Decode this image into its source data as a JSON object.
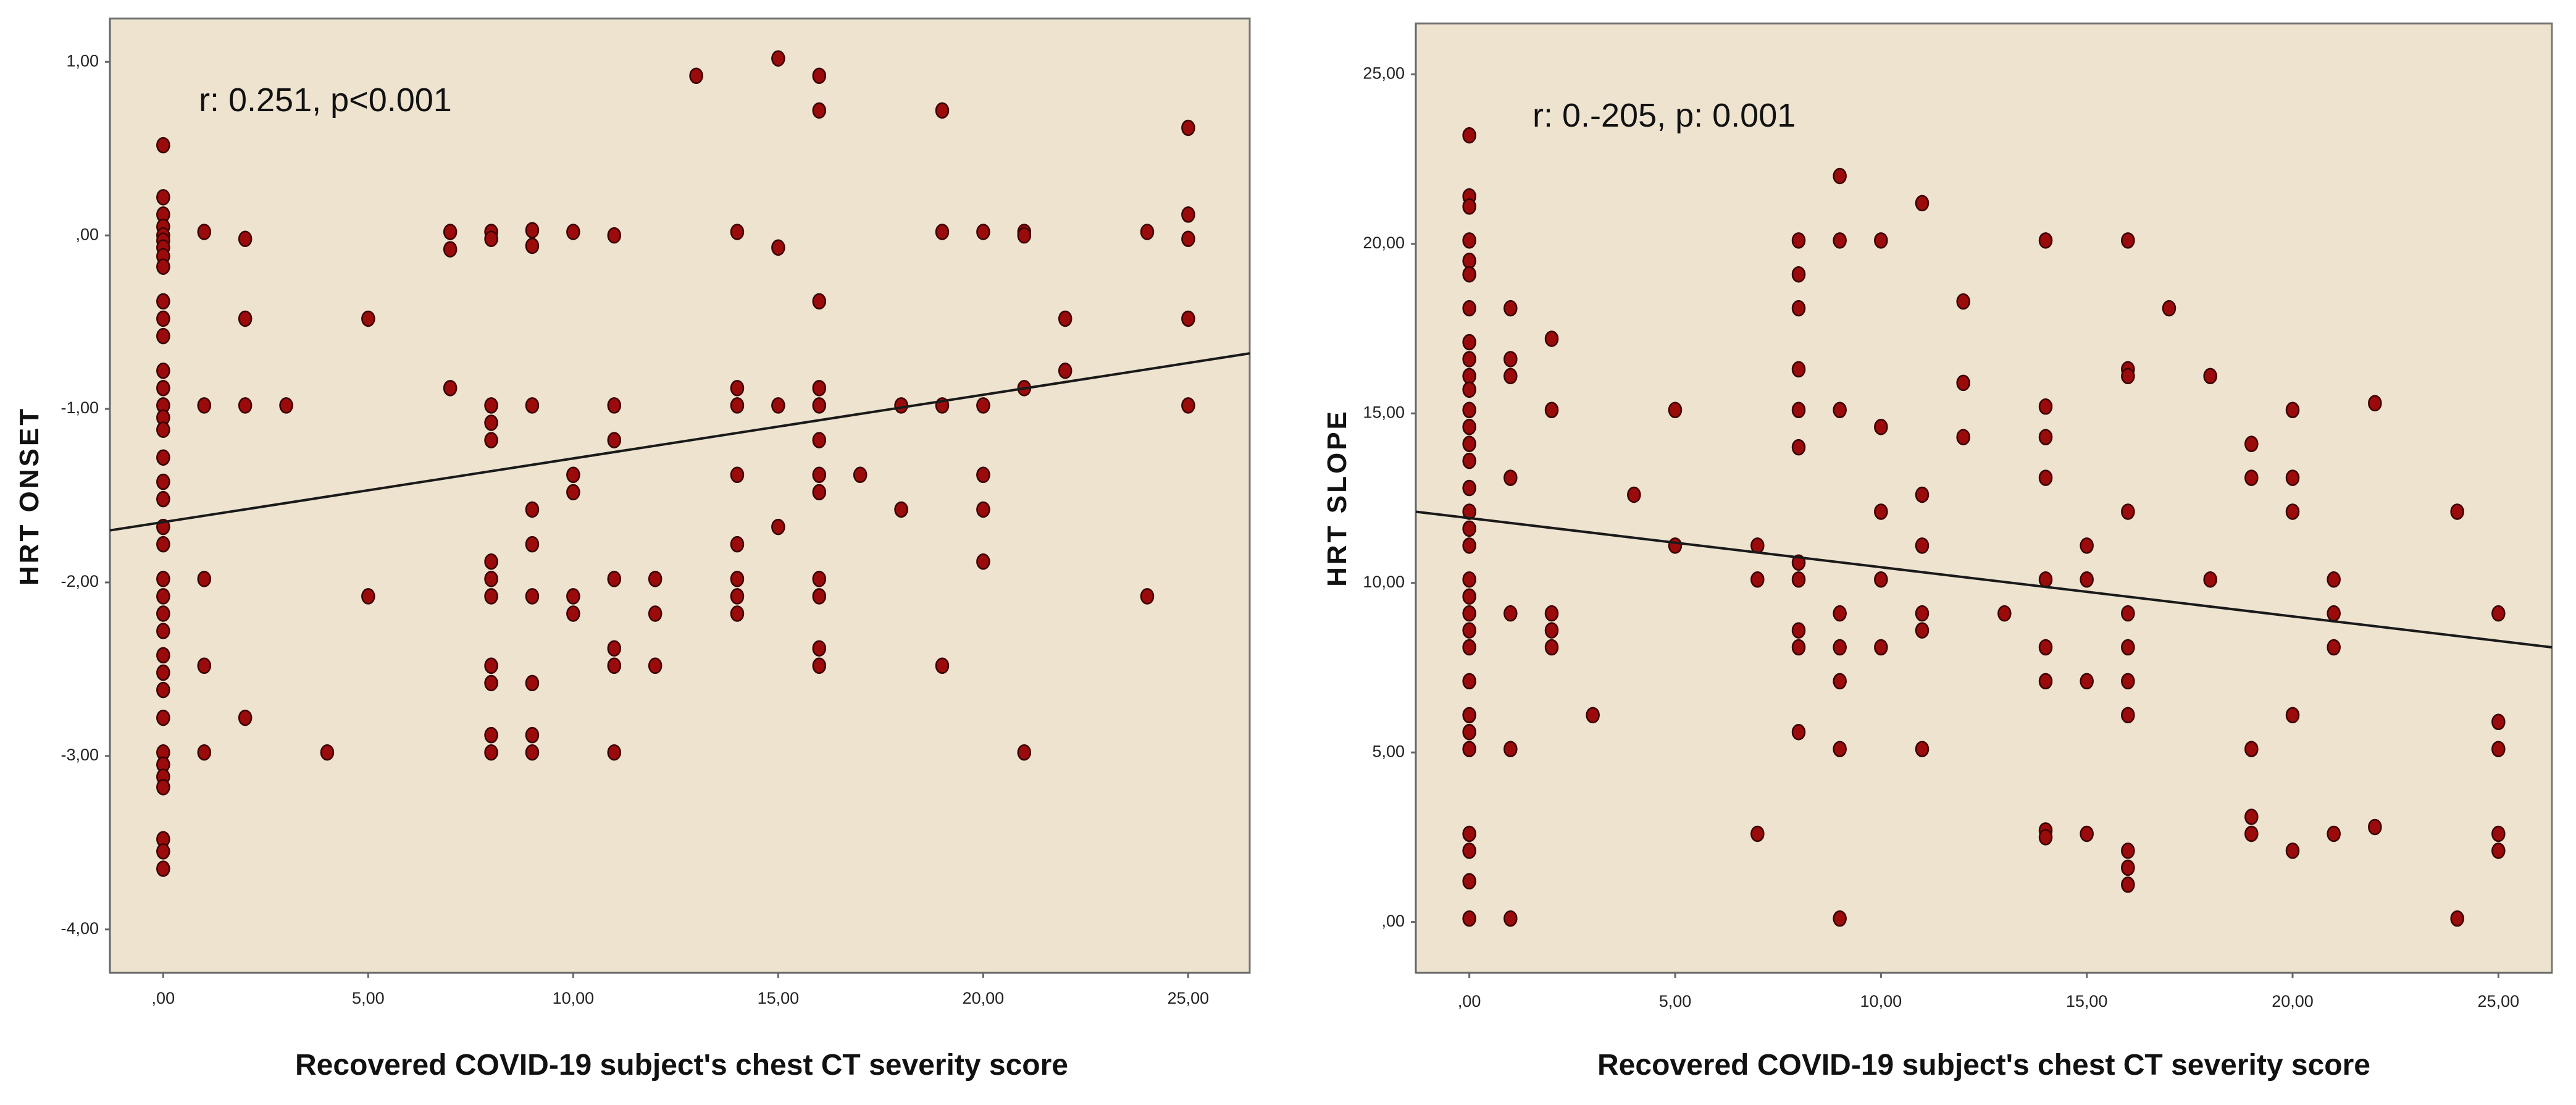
{
  "colors": {
    "plot_background": "#eee3cf",
    "point_fill": "#9b0b0b",
    "point_stroke": "#3a0000",
    "fit_line": "#1a1a1a",
    "frame": "#777777"
  },
  "chart_data": [
    {
      "type": "scatter",
      "title": "",
      "xlabel": "Recovered  COVID-19  subject's  chest  CT  severity  score",
      "ylabel": "HRT  ONSET",
      "xlim": [
        -1.3,
        26.5
      ],
      "ylim": [
        -4.25,
        1.25
      ],
      "xticks": [
        0,
        5,
        10,
        15,
        20,
        25
      ],
      "xtick_labels": [
        ",00",
        "5,00",
        "10,00",
        "15,00",
        "20,00",
        "25,00"
      ],
      "yticks": [
        1,
        0,
        -1,
        -2,
        -3,
        -4
      ],
      "ytick_labels": [
        "1,00",
        ",00",
        "-1,00",
        "-2,00",
        "-3,00",
        "-4,00"
      ],
      "annotation": "r: 0.251, p<0.001",
      "fit_line": {
        "x": [
          -1.3,
          26.5
        ],
        "y": [
          -1.7,
          -0.68
        ]
      },
      "points": [
        [
          0,
          0.52
        ],
        [
          0,
          0.22
        ],
        [
          0,
          0.12
        ],
        [
          0,
          0.05
        ],
        [
          0,
          0.0
        ],
        [
          0,
          -0.03
        ],
        [
          0,
          -0.07
        ],
        [
          0,
          -0.12
        ],
        [
          0,
          -0.18
        ],
        [
          0,
          -0.38
        ],
        [
          0,
          -0.48
        ],
        [
          0,
          -0.58
        ],
        [
          0,
          -0.78
        ],
        [
          0,
          -0.88
        ],
        [
          0,
          -0.98
        ],
        [
          0,
          -1.05
        ],
        [
          0,
          -1.12
        ],
        [
          0,
          -1.28
        ],
        [
          0,
          -1.42
        ],
        [
          0,
          -1.52
        ],
        [
          0,
          -1.68
        ],
        [
          0,
          -1.78
        ],
        [
          0,
          -1.98
        ],
        [
          0,
          -2.08
        ],
        [
          0,
          -2.18
        ],
        [
          0,
          -2.28
        ],
        [
          0,
          -2.42
        ],
        [
          0,
          -2.52
        ],
        [
          0,
          -2.62
        ],
        [
          0,
          -2.78
        ],
        [
          0,
          -2.98
        ],
        [
          0,
          -3.05
        ],
        [
          0,
          -3.12
        ],
        [
          0,
          -3.18
        ],
        [
          0,
          -3.48
        ],
        [
          0,
          -3.55
        ],
        [
          0,
          -3.65
        ],
        [
          1,
          0.02
        ],
        [
          1,
          -0.98
        ],
        [
          1,
          -1.98
        ],
        [
          1,
          -2.48
        ],
        [
          1,
          -2.98
        ],
        [
          2,
          -0.02
        ],
        [
          2,
          -0.48
        ],
        [
          2,
          -0.98
        ],
        [
          2,
          -2.78
        ],
        [
          3,
          -0.98
        ],
        [
          4,
          -2.98
        ],
        [
          5,
          -0.48
        ],
        [
          5,
          -2.08
        ],
        [
          7,
          0.02
        ],
        [
          7,
          -0.08
        ],
        [
          7,
          -0.88
        ],
        [
          8,
          0.02
        ],
        [
          8,
          -0.02
        ],
        [
          8,
          -0.98
        ],
        [
          8,
          -1.08
        ],
        [
          8,
          -1.18
        ],
        [
          8,
          -1.88
        ],
        [
          8,
          -1.98
        ],
        [
          8,
          -2.08
        ],
        [
          8,
          -2.48
        ],
        [
          8,
          -2.58
        ],
        [
          8,
          -2.88
        ],
        [
          8,
          -2.98
        ],
        [
          9,
          0.03
        ],
        [
          9,
          -0.06
        ],
        [
          9,
          -0.98
        ],
        [
          9,
          -1.58
        ],
        [
          9,
          -1.78
        ],
        [
          9,
          -2.08
        ],
        [
          9,
          -2.58
        ],
        [
          9,
          -2.88
        ],
        [
          9,
          -2.98
        ],
        [
          10,
          0.02
        ],
        [
          10,
          -1.38
        ],
        [
          10,
          -1.48
        ],
        [
          10,
          -2.08
        ],
        [
          10,
          -2.18
        ],
        [
          11,
          0.0
        ],
        [
          11,
          -0.98
        ],
        [
          11,
          -1.18
        ],
        [
          11,
          -1.98
        ],
        [
          11,
          -2.38
        ],
        [
          11,
          -2.48
        ],
        [
          11,
          -2.98
        ],
        [
          12,
          -1.98
        ],
        [
          12,
          -2.18
        ],
        [
          12,
          -2.48
        ],
        [
          13,
          0.92
        ],
        [
          14,
          0.02
        ],
        [
          14,
          -0.88
        ],
        [
          14,
          -0.98
        ],
        [
          14,
          -1.38
        ],
        [
          14,
          -1.78
        ],
        [
          14,
          -1.98
        ],
        [
          14,
          -2.08
        ],
        [
          14,
          -2.18
        ],
        [
          15,
          1.02
        ],
        [
          15,
          -0.07
        ],
        [
          15,
          -0.98
        ],
        [
          15,
          -1.68
        ],
        [
          16,
          0.92
        ],
        [
          16,
          0.72
        ],
        [
          16,
          -0.38
        ],
        [
          16,
          -0.88
        ],
        [
          16,
          -0.98
        ],
        [
          16,
          -1.18
        ],
        [
          16,
          -1.38
        ],
        [
          16,
          -1.48
        ],
        [
          16,
          -1.98
        ],
        [
          16,
          -2.08
        ],
        [
          16,
          -2.38
        ],
        [
          16,
          -2.48
        ],
        [
          17,
          -1.38
        ],
        [
          18,
          -0.98
        ],
        [
          18,
          -1.58
        ],
        [
          19,
          0.72
        ],
        [
          19,
          0.02
        ],
        [
          19,
          -0.98
        ],
        [
          19,
          -2.48
        ],
        [
          20,
          0.02
        ],
        [
          20,
          -0.98
        ],
        [
          20,
          -1.38
        ],
        [
          20,
          -1.58
        ],
        [
          20,
          -1.88
        ],
        [
          21,
          0.02
        ],
        [
          21,
          0.0
        ],
        [
          21,
          -0.88
        ],
        [
          21,
          -2.98
        ],
        [
          22,
          -0.48
        ],
        [
          22,
          -0.78
        ],
        [
          24,
          0.02
        ],
        [
          24,
          -2.08
        ],
        [
          25,
          0.62
        ],
        [
          25,
          0.12
        ],
        [
          25,
          -0.02
        ],
        [
          25,
          -0.48
        ],
        [
          25,
          -0.98
        ]
      ]
    },
    {
      "type": "scatter",
      "title": "",
      "xlabel": "Recovered  COVID-19  subject's  chest  CT  severity  score",
      "ylabel": "HRT  SLOPE",
      "xlim": [
        -1.3,
        26.3
      ],
      "ylim": [
        -1.5,
        26.5
      ],
      "xticks": [
        0,
        5,
        10,
        15,
        20,
        25
      ],
      "xtick_labels": [
        ",00",
        "5,00",
        "10,00",
        "15,00",
        "20,00",
        "25,00"
      ],
      "yticks": [
        0,
        5,
        10,
        15,
        20,
        25
      ],
      "ytick_labels": [
        ",00",
        "5,00",
        "10,00",
        "15,00",
        "20,00",
        "25,00"
      ],
      "annotation": "r: 0.-205, p: 0.001",
      "fit_line": {
        "x": [
          -1.3,
          26.3
        ],
        "y": [
          12.1,
          8.1
        ]
      },
      "points": [
        [
          0,
          23.2
        ],
        [
          0,
          21.4
        ],
        [
          0,
          21.1
        ],
        [
          0,
          20.1
        ],
        [
          0,
          19.5
        ],
        [
          0,
          19.1
        ],
        [
          0,
          18.1
        ],
        [
          0,
          17.1
        ],
        [
          0,
          16.6
        ],
        [
          0,
          16.1
        ],
        [
          0,
          15.7
        ],
        [
          0,
          15.1
        ],
        [
          0,
          14.6
        ],
        [
          0,
          14.1
        ],
        [
          0,
          13.6
        ],
        [
          0,
          12.8
        ],
        [
          0,
          12.1
        ],
        [
          0,
          11.6
        ],
        [
          0,
          11.1
        ],
        [
          0,
          10.1
        ],
        [
          0,
          9.6
        ],
        [
          0,
          9.1
        ],
        [
          0,
          8.6
        ],
        [
          0,
          8.1
        ],
        [
          0,
          7.1
        ],
        [
          0,
          6.1
        ],
        [
          0,
          5.6
        ],
        [
          0,
          5.1
        ],
        [
          0,
          2.6
        ],
        [
          0,
          2.1
        ],
        [
          0,
          1.2
        ],
        [
          0,
          0.1
        ],
        [
          1,
          18.1
        ],
        [
          1,
          16.6
        ],
        [
          1,
          16.1
        ],
        [
          1,
          13.1
        ],
        [
          1,
          9.1
        ],
        [
          1,
          5.1
        ],
        [
          1,
          0.1
        ],
        [
          2,
          17.2
        ],
        [
          2,
          15.1
        ],
        [
          2,
          9.1
        ],
        [
          2,
          8.6
        ],
        [
          2,
          8.1
        ],
        [
          3,
          6.1
        ],
        [
          4,
          12.6
        ],
        [
          5,
          15.1
        ],
        [
          5,
          11.1
        ],
        [
          7,
          11.1
        ],
        [
          7,
          10.1
        ],
        [
          7,
          2.6
        ],
        [
          8,
          20.1
        ],
        [
          8,
          19.1
        ],
        [
          8,
          18.1
        ],
        [
          8,
          16.3
        ],
        [
          8,
          15.1
        ],
        [
          8,
          14.0
        ],
        [
          8,
          10.6
        ],
        [
          8,
          10.1
        ],
        [
          8,
          8.6
        ],
        [
          8,
          8.1
        ],
        [
          8,
          5.6
        ],
        [
          9,
          22.0
        ],
        [
          9,
          20.1
        ],
        [
          9,
          15.1
        ],
        [
          9,
          9.1
        ],
        [
          9,
          8.1
        ],
        [
          9,
          7.1
        ],
        [
          9,
          5.1
        ],
        [
          9,
          0.1
        ],
        [
          10,
          20.1
        ],
        [
          10,
          14.6
        ],
        [
          10,
          12.1
        ],
        [
          10,
          10.1
        ],
        [
          10,
          8.1
        ],
        [
          11,
          21.2
        ],
        [
          11,
          12.6
        ],
        [
          11,
          11.1
        ],
        [
          11,
          9.1
        ],
        [
          11,
          8.6
        ],
        [
          11,
          5.1
        ],
        [
          12,
          18.3
        ],
        [
          12,
          15.9
        ],
        [
          12,
          14.3
        ],
        [
          13,
          9.1
        ],
        [
          14,
          20.1
        ],
        [
          14,
          15.2
        ],
        [
          14,
          14.3
        ],
        [
          14,
          13.1
        ],
        [
          14,
          10.1
        ],
        [
          14,
          8.1
        ],
        [
          14,
          7.1
        ],
        [
          14,
          2.7
        ],
        [
          14,
          2.5
        ],
        [
          15,
          11.1
        ],
        [
          15,
          10.1
        ],
        [
          15,
          7.1
        ],
        [
          15,
          2.6
        ],
        [
          16,
          20.1
        ],
        [
          16,
          16.3
        ],
        [
          16,
          16.1
        ],
        [
          16,
          12.1
        ],
        [
          16,
          9.1
        ],
        [
          16,
          8.1
        ],
        [
          16,
          7.1
        ],
        [
          16,
          6.1
        ],
        [
          16,
          2.1
        ],
        [
          16,
          1.6
        ],
        [
          16,
          1.1
        ],
        [
          17,
          18.1
        ],
        [
          18,
          16.1
        ],
        [
          18,
          10.1
        ],
        [
          19,
          14.1
        ],
        [
          19,
          13.1
        ],
        [
          19,
          5.1
        ],
        [
          19,
          3.1
        ],
        [
          19,
          2.6
        ],
        [
          20,
          15.1
        ],
        [
          20,
          13.1
        ],
        [
          20,
          12.1
        ],
        [
          20,
          6.1
        ],
        [
          20,
          2.1
        ],
        [
          21,
          10.1
        ],
        [
          21,
          9.1
        ],
        [
          21,
          8.1
        ],
        [
          21,
          2.6
        ],
        [
          22,
          15.3
        ],
        [
          22,
          2.8
        ],
        [
          24,
          12.1
        ],
        [
          24,
          0.1
        ],
        [
          25,
          9.1
        ],
        [
          25,
          5.9
        ],
        [
          25,
          5.1
        ],
        [
          25,
          2.6
        ],
        [
          25,
          2.1
        ]
      ]
    }
  ]
}
